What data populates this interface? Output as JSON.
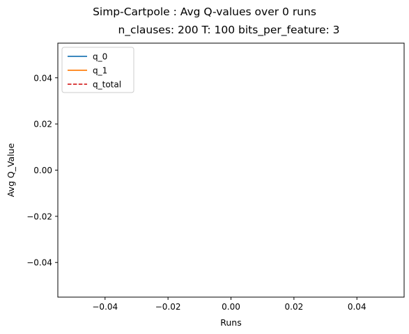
{
  "chart_data": {
    "type": "line",
    "title": "Simp-Cartpole : Avg Q-values over 0 runs",
    "subtitle": "n_clauses: 200 T: 100 bits_per_feature: 3",
    "xlabel": "Runs",
    "ylabel": "Avg Q_Value",
    "xlim": [
      -0.055,
      0.055
    ],
    "ylim": [
      -0.055,
      0.055
    ],
    "x_ticks": [
      -0.04,
      -0.02,
      0.0,
      0.02,
      0.04
    ],
    "x_tick_labels": [
      "−0.04",
      "−0.02",
      "0.00",
      "0.02",
      "0.04"
    ],
    "y_ticks": [
      -0.04,
      -0.02,
      0.0,
      0.02,
      0.04
    ],
    "y_tick_labels": [
      "−0.04",
      "−0.02",
      "0.00",
      "0.02",
      "0.04"
    ],
    "grid": false,
    "legend_position": "top-left",
    "series": [
      {
        "name": "q_0",
        "x": [],
        "values": [],
        "color": "#1f77b4",
        "style": "solid"
      },
      {
        "name": "q_1",
        "x": [],
        "values": [],
        "color": "#ff7f0e",
        "style": "solid"
      },
      {
        "name": "q_total",
        "x": [],
        "values": [],
        "color": "#d62728",
        "style": "dashed"
      }
    ]
  }
}
